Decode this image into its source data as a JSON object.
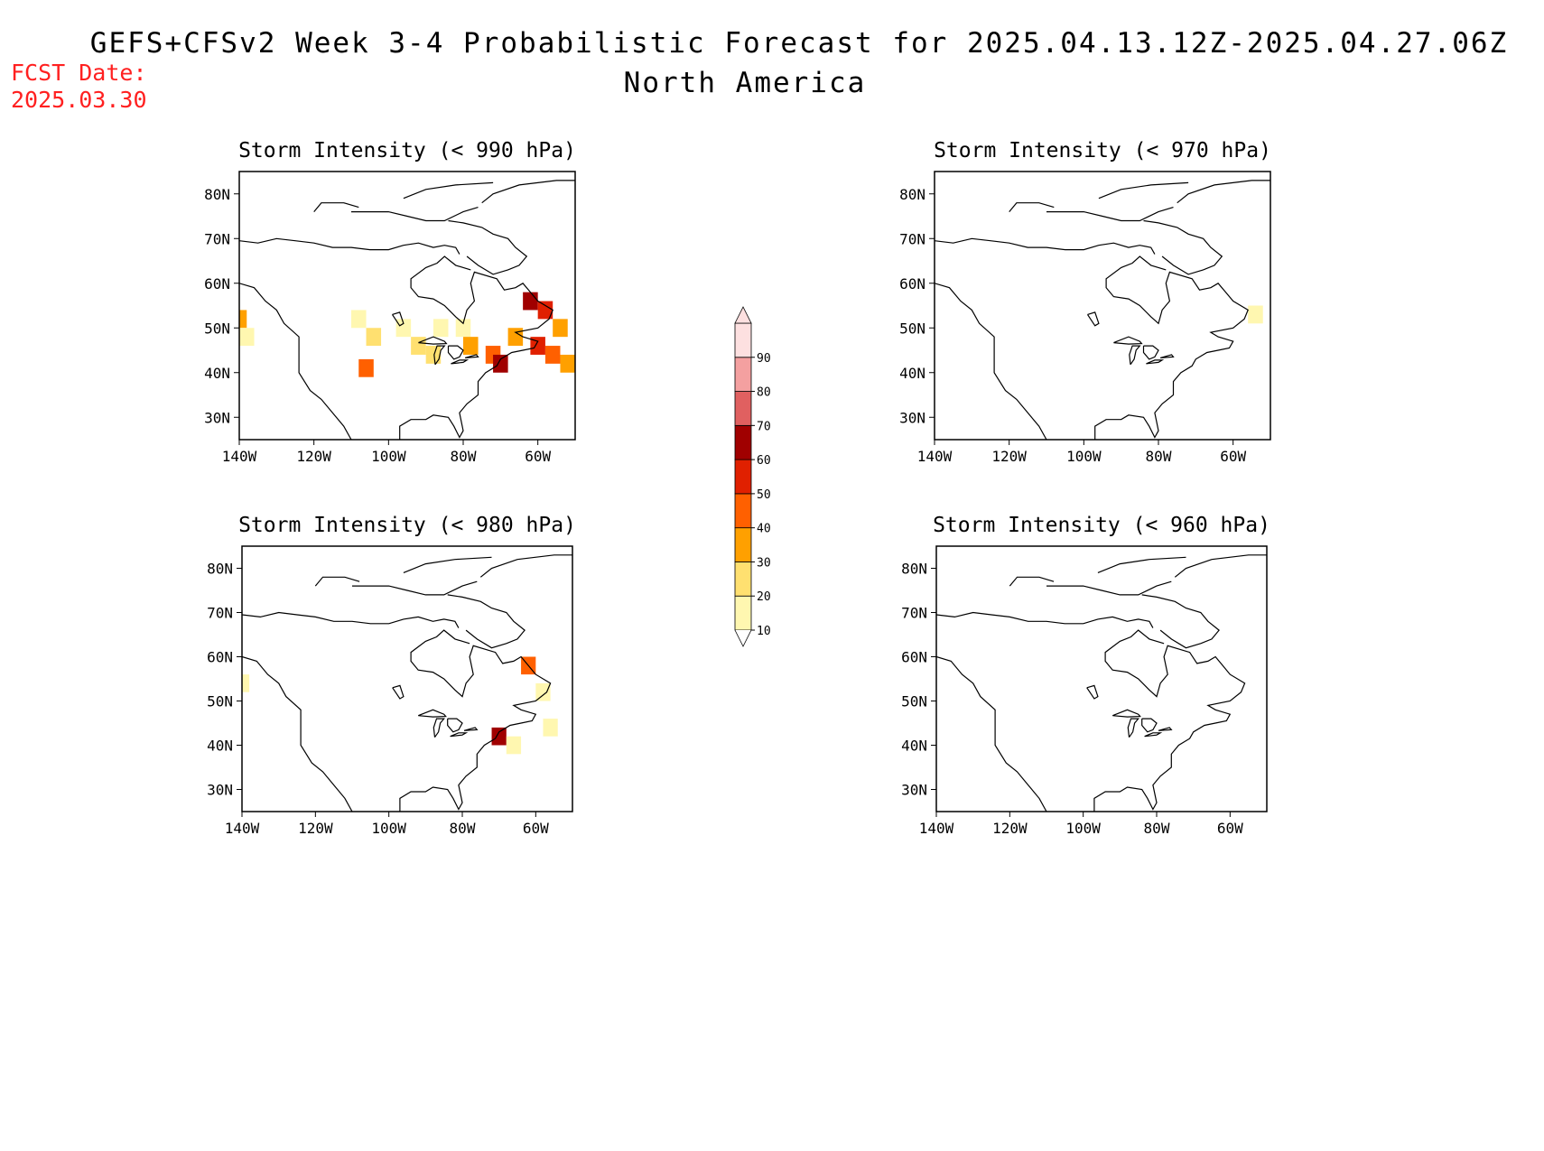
{
  "title": "GEFS+CFSv2 Week 3-4 Probabilistic Forecast for 2025.04.13.12Z-2025.04.27.06Z",
  "subtitle": "North America",
  "fcst_label": "FCST Date:",
  "fcst_date": "2025.03.30",
  "axes": {
    "lat_ticks": [
      "80N",
      "70N",
      "60N",
      "50N",
      "40N",
      "30N"
    ],
    "lon_ticks": [
      "140W",
      "120W",
      "100W",
      "80W",
      "60W"
    ],
    "lat_values": [
      80,
      70,
      60,
      50,
      40,
      30
    ],
    "lon_values": [
      -140,
      -120,
      -100,
      -80,
      -60
    ],
    "lat_range": [
      25,
      85
    ],
    "lon_range": [
      -140,
      -50
    ]
  },
  "colorbar": {
    "levels": [
      10,
      20,
      30,
      40,
      50,
      60,
      70,
      80,
      90
    ],
    "labels": [
      "10",
      "20",
      "30",
      "40",
      "50",
      "60",
      "70",
      "80",
      "90"
    ],
    "colors": [
      "#fff7b0",
      "#ffe070",
      "#ffa000",
      "#ff6000",
      "#e02000",
      "#a00000",
      "#e06060",
      "#f4a0a0",
      "#fde0e0"
    ]
  },
  "panels": [
    {
      "id": "p990",
      "title": "Storm Intensity (< 990 hPa)",
      "cells": [
        {
          "lon": -140,
          "lat": 52,
          "v": 30
        },
        {
          "lon": -138,
          "lat": 48,
          "v": 15
        },
        {
          "lon": -108,
          "lat": 52,
          "v": 15
        },
        {
          "lon": -104,
          "lat": 48,
          "v": 20
        },
        {
          "lon": -106,
          "lat": 41,
          "v": 45
        },
        {
          "lon": -96,
          "lat": 50,
          "v": 15
        },
        {
          "lon": -92,
          "lat": 46,
          "v": 25
        },
        {
          "lon": -86,
          "lat": 50,
          "v": 15
        },
        {
          "lon": -88,
          "lat": 44,
          "v": 20
        },
        {
          "lon": -80,
          "lat": 50,
          "v": 15
        },
        {
          "lon": -78,
          "lat": 46,
          "v": 30
        },
        {
          "lon": -72,
          "lat": 44,
          "v": 45
        },
        {
          "lon": -70,
          "lat": 42,
          "v": 65
        },
        {
          "lon": -66,
          "lat": 48,
          "v": 35
        },
        {
          "lon": -62,
          "lat": 56,
          "v": 60
        },
        {
          "lon": -58,
          "lat": 54,
          "v": 50
        },
        {
          "lon": -60,
          "lat": 46,
          "v": 55
        },
        {
          "lon": -56,
          "lat": 44,
          "v": 45
        },
        {
          "lon": -54,
          "lat": 50,
          "v": 35
        },
        {
          "lon": -52,
          "lat": 42,
          "v": 30
        }
      ]
    },
    {
      "id": "p970",
      "title": "Storm Intensity (< 970 hPa)",
      "cells": [
        {
          "lon": -54,
          "lat": 53,
          "v": 15
        }
      ]
    },
    {
      "id": "p980",
      "title": "Storm Intensity (< 980 hPa)",
      "cells": [
        {
          "lon": -140,
          "lat": 54,
          "v": 15
        },
        {
          "lon": -62,
          "lat": 58,
          "v": 40
        },
        {
          "lon": -58,
          "lat": 52,
          "v": 15
        },
        {
          "lon": -70,
          "lat": 42,
          "v": 60
        },
        {
          "lon": -66,
          "lat": 40,
          "v": 15
        },
        {
          "lon": -56,
          "lat": 44,
          "v": 15
        }
      ]
    },
    {
      "id": "p960",
      "title": "Storm Intensity (< 960 hPa)",
      "cells": []
    }
  ]
}
